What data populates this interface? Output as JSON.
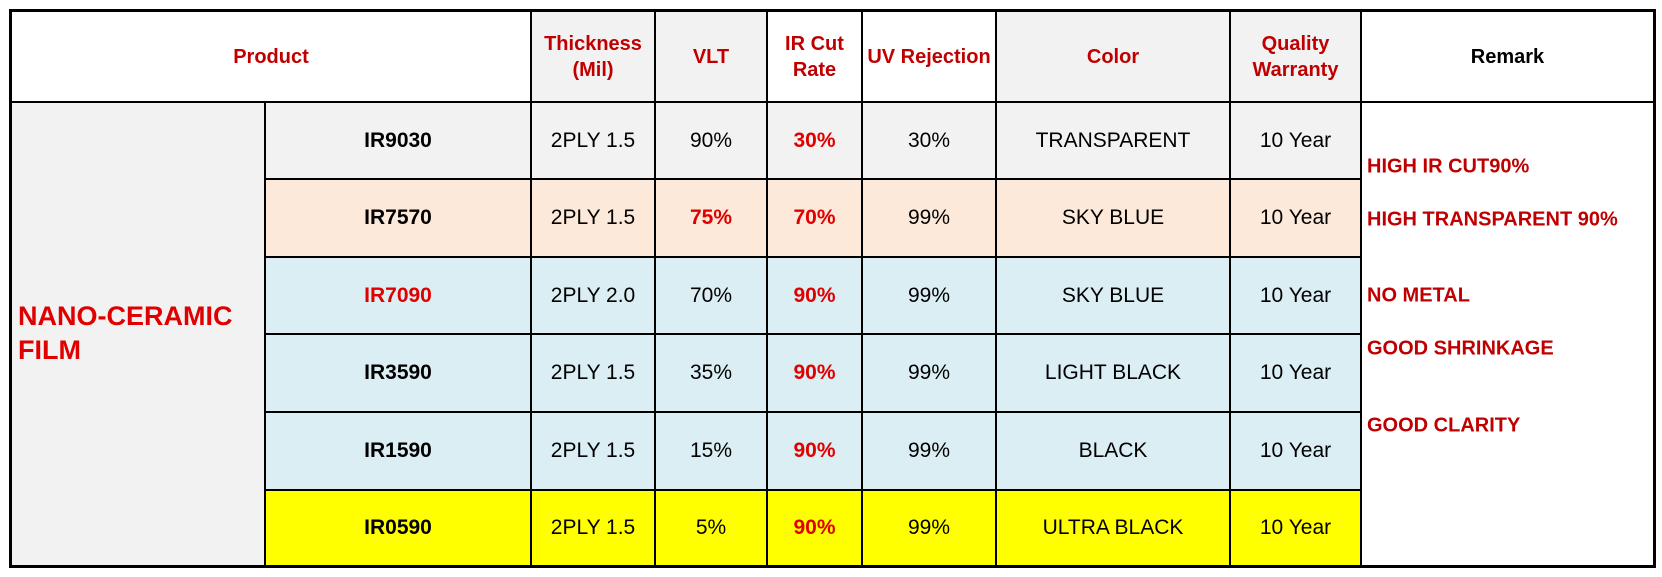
{
  "table": {
    "header": [
      "Product",
      "Thickness (Mil)",
      "VLT",
      "IR Cut Rate",
      "UV Rejection",
      "Color",
      "Quality Warranty",
      "Remark"
    ],
    "category": "NANO-CERAMIC FILM",
    "rows": [
      [
        "IR9030",
        "2PLY 1.5",
        "90%",
        "30%",
        "30%",
        "TRANSPARENT",
        "10 Year"
      ],
      [
        "IR7570",
        "2PLY 1.5",
        "75%",
        "70%",
        "99%",
        "SKY BLUE",
        "10 Year"
      ],
      [
        "IR7090",
        "2PLY 2.0",
        "70%",
        "90%",
        "99%",
        "SKY BLUE",
        "10 Year"
      ],
      [
        "IR3590",
        "2PLY 1.5",
        "35%",
        "90%",
        "99%",
        "LIGHT BLACK",
        "10 Year"
      ],
      [
        "IR1590",
        "2PLY 1.5",
        "15%",
        "90%",
        "99%",
        "BLACK",
        "10 Year"
      ],
      [
        "IR0590",
        "2PLY 1.5",
        "5%",
        "90%",
        "99%",
        "ULTRA BLACK",
        "10 Year"
      ]
    ],
    "remarks": [
      "HIGH IR CUT90%",
      "HIGH TRANSPARENT 90%",
      "NO METAL",
      "GOOD SHRINKAGE",
      "GOOD CLARITY"
    ]
  }
}
